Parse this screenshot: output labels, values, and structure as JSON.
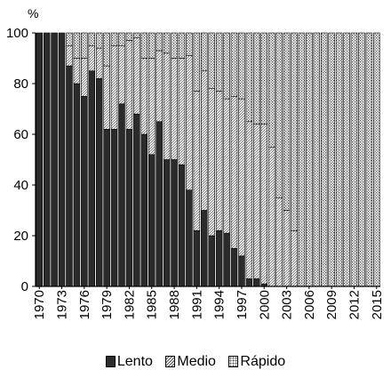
{
  "chart_data": {
    "type": "bar",
    "stacked": true,
    "title": "",
    "ylabel": "%",
    "xlabel": "",
    "ylim": [
      0,
      100
    ],
    "yticks": [
      0,
      20,
      40,
      60,
      80,
      100
    ],
    "xtick_labels": [
      "1970",
      "1973",
      "1976",
      "1979",
      "1982",
      "1985",
      "1988",
      "1991",
      "1994",
      "1997",
      "2000",
      "2003",
      "2006",
      "2009",
      "2012",
      "2015"
    ],
    "categories": [
      "1970",
      "1971",
      "1972",
      "1973",
      "1974",
      "1975",
      "1976",
      "1977",
      "1978",
      "1979",
      "1980",
      "1981",
      "1982",
      "1983",
      "1984",
      "1985",
      "1986",
      "1987",
      "1988",
      "1989",
      "1990",
      "1991",
      "1992",
      "1993",
      "1994",
      "1995",
      "1996",
      "1997",
      "1998",
      "1999",
      "2000",
      "2001",
      "2002",
      "2003",
      "2004",
      "2005",
      "2006",
      "2007",
      "2008",
      "2009",
      "2010",
      "2011",
      "2012",
      "2013",
      "2014",
      "2015"
    ],
    "series": [
      {
        "name": "Lento",
        "pattern": "solid",
        "color": "#2b2b2b",
        "values": [
          100,
          100,
          100,
          100,
          87,
          80,
          75,
          85,
          82,
          62,
          62,
          72,
          62,
          68,
          60,
          52,
          65,
          50,
          50,
          48,
          38,
          22,
          30,
          20,
          22,
          21,
          15,
          12,
          3,
          3,
          1,
          0,
          0,
          0,
          0,
          0,
          0,
          0,
          0,
          0,
          0,
          0,
          0,
          0,
          0,
          0
        ]
      },
      {
        "name": "Medio",
        "pattern": "hatch",
        "color": "#ffffff",
        "values": [
          0,
          0,
          0,
          0,
          8,
          10,
          15,
          10,
          12,
          25,
          33,
          23,
          35,
          30,
          30,
          38,
          28,
          42,
          40,
          42,
          53,
          55,
          55,
          58,
          55,
          53,
          60,
          62,
          62,
          61,
          63,
          55,
          35,
          30,
          22,
          0,
          0,
          0,
          0,
          0,
          0,
          0,
          0,
          0,
          0,
          0
        ]
      },
      {
        "name": "Rápido",
        "pattern": "dots",
        "color": "#bdbdbd",
        "values": [
          0,
          0,
          0,
          0,
          5,
          10,
          10,
          5,
          6,
          13,
          5,
          5,
          3,
          2,
          10,
          10,
          7,
          8,
          10,
          10,
          9,
          23,
          15,
          22,
          23,
          26,
          25,
          26,
          35,
          36,
          36,
          45,
          65,
          70,
          78,
          100,
          100,
          100,
          100,
          100,
          100,
          100,
          100,
          100,
          100,
          100
        ]
      }
    ],
    "legend_position": "bottom",
    "grid": false
  }
}
